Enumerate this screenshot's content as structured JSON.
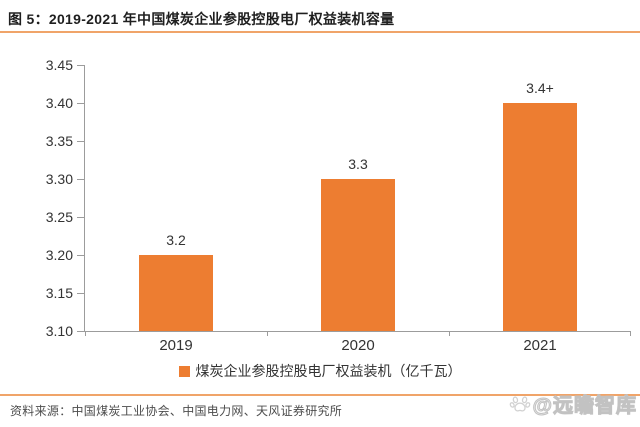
{
  "page": {
    "title": "图 5：2019-2021 年中国煤炭企业参股控股电厂权益装机容量",
    "source": "资料来源：中国煤炭工业协会、中国电力网、天风证券研究所",
    "watermark": "@远瞻智库",
    "accent_line_color": "#F0A469",
    "watermark_icon": "paw-icon"
  },
  "chart_data": {
    "type": "bar",
    "title": "图 5：2019-2021 年中国煤炭企业参股控股电厂权益装机容量",
    "categories": [
      "2019",
      "2020",
      "2021"
    ],
    "values": [
      3.2,
      3.3,
      3.4
    ],
    "value_labels": [
      "3.2",
      "3.3",
      "3.4+"
    ],
    "series_name": "煤炭企业参股控股电厂权益装机（亿千瓦）",
    "xlabel": "",
    "ylabel": "",
    "ylim": [
      3.1,
      3.45
    ],
    "ytick_step": 0.05,
    "yticks": [
      "3.45",
      "3.40",
      "3.35",
      "3.30",
      "3.25",
      "3.20",
      "3.15",
      "3.10"
    ],
    "bar_color": "#ED7D31",
    "axis_color": "#9c9c9c",
    "grid": false,
    "legend_position": "bottom"
  }
}
